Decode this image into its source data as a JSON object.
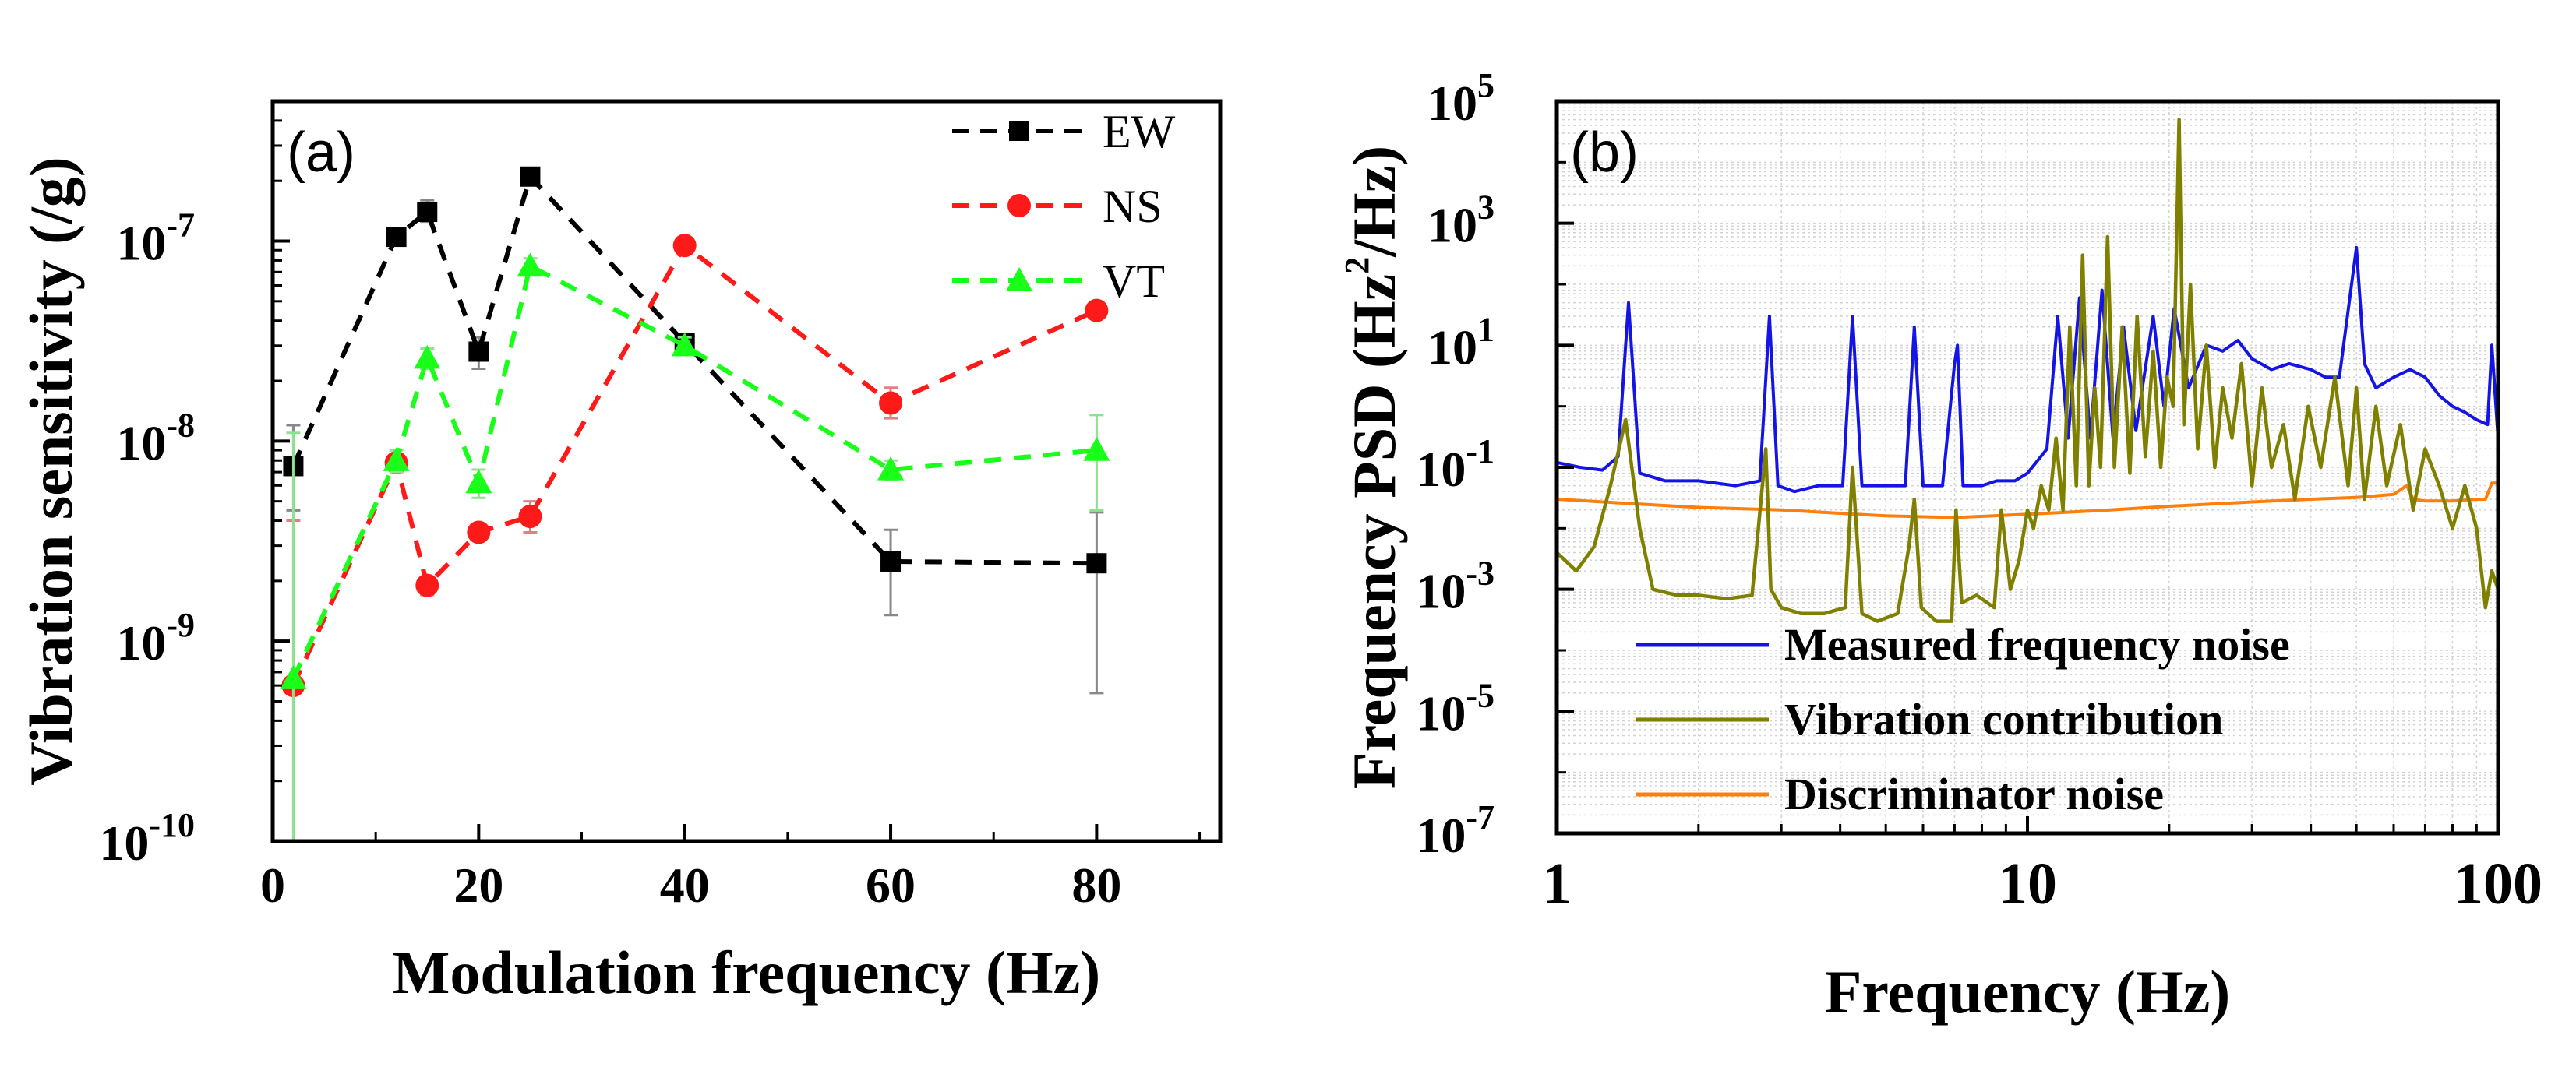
{
  "chart_data": [
    {
      "panel_label": "(a)",
      "type": "scatter",
      "xscale": "linear",
      "yscale": "log",
      "xlabel": "Modulation frequency (Hz)",
      "ylabel": "Vibration sensitivity (/g)",
      "xlim": [
        0,
        92
      ],
      "ylim": [
        1e-10,
        5e-07
      ],
      "xticks": [
        0,
        20,
        40,
        60,
        80
      ],
      "xtick_labels": [
        "0",
        "20",
        "40",
        "60",
        "80"
      ],
      "yticks": [
        1e-10,
        1e-09,
        1e-08,
        1e-07
      ],
      "ytick_labels": [
        {
          "base": "10",
          "exp": "-10"
        },
        {
          "base": "10",
          "exp": "-9"
        },
        {
          "base": "10",
          "exp": "-8"
        },
        {
          "base": "10",
          "exp": "-7"
        }
      ],
      "legend_position": "top-right",
      "series": [
        {
          "name": "EW",
          "color": "#000000",
          "marker": "square",
          "linestyle": "dashed",
          "x": [
            2,
            12,
            15,
            20,
            25,
            40,
            60,
            80
          ],
          "y": [
            7.5e-09,
            1.05e-07,
            1.4e-07,
            2.8e-08,
            2.1e-07,
            3.1e-08,
            2.5e-09,
            2.45e-09
          ],
          "err_hi": [
            1.2e-08,
            1.15e-07,
            1.6e-07,
            3.3e-08,
            2.3e-07,
            3.4e-08,
            3.6e-09,
            4.4e-09
          ],
          "err_lo": [
            4.5e-09,
            9.5e-08,
            1.25e-07,
            2.3e-08,
            1.95e-07,
            2.8e-08,
            1.35e-09,
            5.5e-10
          ]
        },
        {
          "name": "NS",
          "color": "#ff1a1a",
          "marker": "circle",
          "linestyle": "dashed",
          "x": [
            2,
            12,
            15,
            20,
            25,
            40,
            60,
            80
          ],
          "y": [
            6e-10,
            7.8e-09,
            1.9e-09,
            3.5e-09,
            4.2e-09,
            9.5e-08,
            1.55e-08,
            4.5e-08
          ],
          "err_hi": [
            4e-09,
            8.5e-09,
            2.1e-09,
            3.8e-09,
            5e-09,
            1.02e-07,
            1.85e-08,
            4.9e-08
          ],
          "err_lo": [
            1e-10,
            7e-09,
            1.7e-09,
            3.2e-09,
            3.5e-09,
            8.8e-08,
            1.3e-08,
            4.1e-08
          ]
        },
        {
          "name": "VT",
          "color": "#1aff1a",
          "marker": "triangle",
          "linestyle": "dashed",
          "x": [
            2,
            12,
            15,
            20,
            25,
            40,
            60,
            80
          ],
          "y": [
            6.5e-10,
            8e-09,
            2.6e-08,
            6.2e-09,
            7.5e-08,
            3e-08,
            7.2e-09,
            9e-09
          ],
          "err_hi": [
            1.1e-08,
            9e-09,
            2.9e-08,
            7.2e-09,
            8.2e-08,
            3.3e-08,
            8e-09,
            1.35e-08
          ],
          "err_lo": [
            1e-10,
            7e-09,
            2.3e-08,
            5.2e-09,
            6.8e-08,
            2.7e-08,
            6.4e-09,
            4.5e-09
          ]
        }
      ]
    },
    {
      "panel_label": "(b)",
      "type": "line",
      "xscale": "log",
      "yscale": "log",
      "xlabel": "Frequency (Hz)",
      "ylabel": "Frequency PSD (Hz²/Hz)",
      "ylabel_parts": {
        "pre": "Frequency PSD (Hz",
        "sup": "2",
        "post": "/Hz)"
      },
      "xlim": [
        1,
        100
      ],
      "ylim": [
        1e-07,
        100000.0
      ],
      "xticks": [
        1,
        10,
        100
      ],
      "xtick_labels": [
        "1",
        "10",
        "100"
      ],
      "yticks": [
        1e-07,
        1e-05,
        0.001,
        0.1,
        10.0,
        1000.0,
        100000.0
      ],
      "ytick_labels": [
        {
          "base": "10",
          "exp": "-7"
        },
        {
          "base": "10",
          "exp": "-5"
        },
        {
          "base": "10",
          "exp": "-3"
        },
        {
          "base": "10",
          "exp": "-1"
        },
        {
          "base": "10",
          "exp": "1"
        },
        {
          "base": "10",
          "exp": "3"
        },
        {
          "base": "10",
          "exp": "5"
        }
      ],
      "grid": true,
      "legend_position": "bottom-left",
      "series": [
        {
          "name": "Measured frequency noise",
          "color": "#1414e6",
          "x": [
            1,
            1.12,
            1.25,
            1.35,
            1.42,
            1.5,
            1.7,
            2,
            2.4,
            2.7,
            2.83,
            2.95,
            3.2,
            3.6,
            4.05,
            4.25,
            4.45,
            5,
            5.5,
            5.75,
            6,
            6.6,
            7,
            7.1,
            7.3,
            8,
            8.6,
            9.4,
            10,
            11,
            11.6,
            12.2,
            12.9,
            13.6,
            14.4,
            15.2,
            16,
            17,
            18.5,
            19.5,
            20.5,
            22,
            24,
            26,
            28,
            30,
            33,
            36,
            40,
            43,
            46,
            50,
            52,
            55,
            60,
            65,
            70,
            75,
            80,
            85,
            90,
            95,
            97,
            100
          ],
          "y": [
            0.12,
            0.1,
            0.09,
            0.15,
            50,
            0.08,
            0.06,
            0.06,
            0.05,
            0.06,
            30,
            0.05,
            0.04,
            0.05,
            0.05,
            30,
            0.05,
            0.05,
            0.05,
            20,
            0.05,
            0.05,
            5,
            10,
            0.05,
            0.05,
            0.06,
            0.06,
            0.08,
            0.2,
            30,
            0.3,
            60,
            0.3,
            80,
            0.3,
            20,
            0.4,
            30,
            1,
            40,
            2,
            10,
            8,
            12,
            6,
            4,
            5,
            4,
            3,
            3,
            400,
            5,
            2,
            3,
            4,
            3,
            1.5,
            1,
            0.8,
            0.6,
            0.5,
            10,
            0.3
          ]
        },
        {
          "name": "Vibration contribution",
          "color": "#808000",
          "x": [
            1,
            1.1,
            1.2,
            1.3,
            1.4,
            1.5,
            1.6,
            1.8,
            2,
            2.3,
            2.6,
            2.78,
            2.85,
            3,
            3.3,
            3.7,
            4.1,
            4.25,
            4.45,
            4.8,
            5.3,
            5.6,
            5.75,
            5.95,
            6.4,
            6.9,
            7.05,
            7.25,
            7.8,
            8.5,
            8.8,
            9.2,
            9.6,
            10,
            10.3,
            10.7,
            11.1,
            11.5,
            11.9,
            12.3,
            12.7,
            13.1,
            13.5,
            13.9,
            14.3,
            14.8,
            15.3,
            15.9,
            16.5,
            17.1,
            17.8,
            18.5,
            19.2,
            19.8,
            20.4,
            21,
            21.5,
            22.2,
            23,
            24,
            25,
            26,
            27.2,
            28.5,
            30,
            31.5,
            33,
            35,
            37,
            39.5,
            42,
            45,
            48,
            50,
            52,
            55,
            58,
            62,
            66,
            70,
            75,
            80,
            85,
            90,
            94,
            97,
            100
          ],
          "y": [
            0.004,
            0.002,
            0.005,
            0.05,
            0.6,
            0.01,
            0.001,
            0.0008,
            0.0008,
            0.0007,
            0.0008,
            0.2,
            0.001,
            0.0005,
            0.0004,
            0.0004,
            0.0005,
            0.1,
            0.0004,
            0.0003,
            0.0004,
            0.005,
            0.03,
            0.0005,
            0.0003,
            0.0003,
            0.02,
            0.0006,
            0.0008,
            0.0005,
            0.02,
            0.001,
            0.003,
            0.02,
            0.01,
            0.05,
            0.02,
            0.3,
            0.02,
            20,
            0.05,
            300,
            0.05,
            2,
            0.1,
            600,
            0.1,
            20,
            0.08,
            30,
            0.15,
            8,
            0.1,
            3,
            1,
            50000,
            0.5,
            100,
            0.2,
            10,
            0.1,
            2,
            0.3,
            5,
            0.05,
            2,
            0.1,
            0.5,
            0.03,
            1,
            0.1,
            3,
            0.05,
            2,
            0.03,
            1,
            0.05,
            0.5,
            0.02,
            0.2,
            0.05,
            0.01,
            0.05,
            0.01,
            0.0005,
            0.002,
            0.001
          ]
        },
        {
          "name": "Discriminator noise",
          "color": "#ff7f0e",
          "x": [
            1,
            1.5,
            2,
            3,
            5,
            7,
            10,
            15,
            20,
            30,
            40,
            50,
            60,
            64,
            66,
            70,
            80,
            90,
            94,
            97,
            100
          ],
          "y": [
            0.03,
            0.025,
            0.022,
            0.02,
            0.016,
            0.015,
            0.017,
            0.02,
            0.023,
            0.027,
            0.03,
            0.032,
            0.036,
            0.05,
            0.03,
            0.028,
            0.028,
            0.03,
            0.03,
            0.055,
            0.055
          ]
        }
      ]
    }
  ]
}
